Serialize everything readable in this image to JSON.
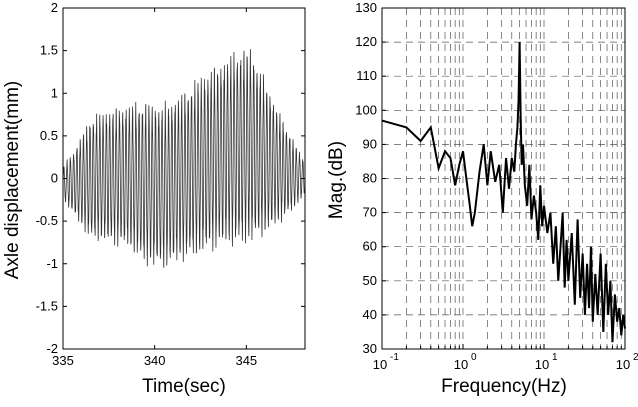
{
  "chart_data": [
    {
      "type": "line",
      "title": "",
      "xlabel": "Time(sec)",
      "ylabel": "Axle displacement(mm)",
      "xlim": [
        335,
        348.2
      ],
      "ylim": [
        -2,
        2
      ],
      "xticks": [
        "335",
        "340",
        "345"
      ],
      "xtick_values": [
        335,
        340,
        345
      ],
      "yticks": [
        "-2",
        "-1.5",
        "-1",
        "-0.5",
        "0",
        "0.5",
        "1",
        "1.5",
        "2"
      ],
      "ytick_values": [
        -2,
        -1.5,
        -1,
        -0.5,
        0,
        0.5,
        1,
        1.5,
        2
      ],
      "grid": false,
      "series": [
        {
          "color": "#333333",
          "description_of_shape": "dense oscillation (~5.6 Hz) with slowly varying envelope",
          "envelope_time": [
            335,
            335.6,
            336.5,
            337.5,
            338.5,
            339.5,
            340.5,
            341.5,
            342.5,
            343.5,
            344.5,
            345.2,
            346,
            346.8,
            347.5,
            348.2
          ],
          "envelope_upper": [
            0.15,
            0.35,
            0.75,
            0.85,
            0.9,
            0.95,
            0.9,
            1.05,
            1.25,
            1.4,
            1.55,
            1.6,
            1.2,
            0.8,
            0.5,
            0.2
          ],
          "envelope_lower": [
            -0.25,
            -0.45,
            -0.75,
            -0.8,
            -0.85,
            -1.05,
            -1.1,
            -1.0,
            -0.95,
            -0.85,
            -0.85,
            -0.8,
            -0.7,
            -0.55,
            -0.4,
            -0.2
          ]
        }
      ]
    },
    {
      "type": "line",
      "title": "",
      "xlabel": "Frequency(Hz)",
      "ylabel": "Mag.(dB)",
      "xscale": "log",
      "xlim": [
        0.1,
        100
      ],
      "ylim": [
        30,
        130
      ],
      "xticks_base": "10",
      "xticks_exp": [
        "-1",
        "0",
        "1",
        "2"
      ],
      "xtick_values": [
        0.1,
        1,
        10,
        100
      ],
      "yticks": [
        "30",
        "40",
        "50",
        "60",
        "70",
        "80",
        "90",
        "100",
        "110",
        "120",
        "130"
      ],
      "ytick_values": [
        30,
        40,
        50,
        60,
        70,
        80,
        90,
        100,
        110,
        120,
        130
      ],
      "grid": true,
      "series": [
        {
          "color": "#000000",
          "x": [
            0.1,
            0.2,
            0.3,
            0.4,
            0.5,
            0.6,
            0.7,
            0.8,
            0.9,
            1.0,
            1.1,
            1.2,
            1.3,
            1.4,
            1.6,
            1.8,
            2.0,
            2.2,
            2.5,
            2.8,
            3.1,
            3.4,
            3.7,
            4.0,
            4.3,
            4.5,
            4.7,
            4.85,
            5.0,
            5.15,
            5.3,
            5.5,
            5.8,
            6.2,
            6.6,
            7.0,
            7.5,
            8.0,
            8.5,
            9.0,
            9.5,
            10,
            11,
            12,
            13,
            14,
            15,
            16,
            17,
            18,
            19,
            20,
            22,
            24,
            26,
            28,
            30,
            32,
            34,
            36,
            38,
            40,
            43,
            46,
            50,
            54,
            58,
            62,
            66,
            70,
            75,
            80,
            85,
            90,
            95,
            100
          ],
          "y": [
            97,
            95,
            91,
            95,
            83,
            88,
            86,
            78,
            84,
            88,
            80,
            73,
            66,
            70,
            82,
            90,
            78,
            88,
            79,
            84,
            70,
            86,
            77,
            86,
            82,
            90,
            95,
            103,
            120,
            98,
            84,
            90,
            78,
            72,
            84,
            68,
            75,
            70,
            62,
            78,
            66,
            72,
            64,
            70,
            55,
            66,
            50,
            60,
            70,
            48,
            62,
            50,
            64,
            43,
            68,
            45,
            58,
            40,
            55,
            42,
            60,
            38,
            52,
            40,
            58,
            35,
            55,
            40,
            50,
            32,
            46,
            38,
            42,
            34,
            40,
            36
          ]
        }
      ]
    }
  ]
}
